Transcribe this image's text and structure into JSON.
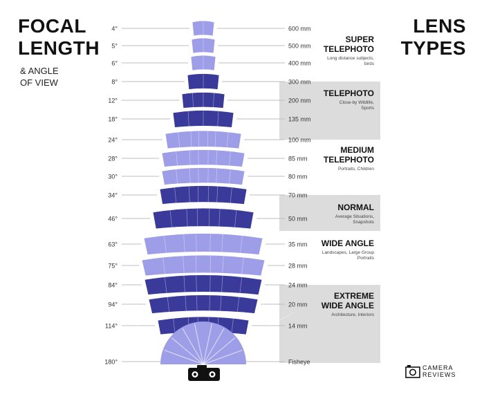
{
  "header": {
    "title_line1": "FOCAL",
    "title_line2": "LENGTH",
    "subtitle_line1": "& ANGLE",
    "subtitle_line2": "OF VIEW",
    "right_title_line1": "LENS",
    "right_title_line2": "TYPES"
  },
  "rows": [
    {
      "angle": "4°",
      "focal": "600 mm",
      "deg": 4
    },
    {
      "angle": "5°",
      "focal": "500 mm",
      "deg": 5
    },
    {
      "angle": "6°",
      "focal": "400 mm",
      "deg": 6
    },
    {
      "angle": "8°",
      "focal": "300 mm",
      "deg": 8
    },
    {
      "angle": "12°",
      "focal": "200 mm",
      "deg": 12
    },
    {
      "angle": "18°",
      "focal": "135 mm",
      "deg": 18
    },
    {
      "angle": "24°",
      "focal": "100 mm",
      "deg": 24
    },
    {
      "angle": "28°",
      "focal": "85 mm",
      "deg": 28
    },
    {
      "angle": "30°",
      "focal": "80 mm",
      "deg": 30
    },
    {
      "angle": "34°",
      "focal": "70 mm",
      "deg": 34
    },
    {
      "angle": "46°",
      "focal": "50 mm",
      "deg": 46
    },
    {
      "angle": "63°",
      "focal": "35 mm",
      "deg": 63
    },
    {
      "angle": "75°",
      "focal": "28 mm",
      "deg": 75
    },
    {
      "angle": "84°",
      "focal": "24 mm",
      "deg": 84
    },
    {
      "angle": "94°",
      "focal": "20 mm",
      "deg": 94
    },
    {
      "angle": "114°",
      "focal": "14 mm",
      "deg": 114
    },
    {
      "angle": "180°",
      "focal": "Fisheye",
      "deg": 180
    }
  ],
  "lens_types": [
    {
      "title_lines": [
        "SUPER",
        "TELEPHOTO"
      ],
      "desc_lines": [
        "Long distance subjects,",
        "birds"
      ],
      "band": "light"
    },
    {
      "title_lines": [
        "TELEPHOTO"
      ],
      "desc_lines": [
        "Close-by Wildlife,",
        "Sports"
      ],
      "band": "gray"
    },
    {
      "title_lines": [
        "MEDIUM",
        "TELEPHOTO"
      ],
      "desc_lines": [
        "Portraits, Children"
      ],
      "band": "light"
    },
    {
      "title_lines": [
        "NORMAL"
      ],
      "desc_lines": [
        "Average Situations,",
        "Snapshots"
      ],
      "band": "gray"
    },
    {
      "title_lines": [
        "WIDE ANGLE"
      ],
      "desc_lines": [
        "Landscapes, Large Group",
        "Portraits"
      ],
      "band": "light"
    },
    {
      "title_lines": [
        "EXTREME",
        "WIDE ANGLE"
      ],
      "desc_lines": [
        "Architecture, Interiors"
      ],
      "band": "gray"
    }
  ],
  "colors": {
    "dark": "#3a3a9a",
    "light": "#9d9de8",
    "band_gray": "#dcdcdc",
    "line": "#bdbdbd"
  },
  "icons": {
    "camera": "camera-icon",
    "brand_logo": "camera-reviews-logo-icon"
  },
  "brand": {
    "line1": "CAMERA",
    "line2": "REVIEWS"
  }
}
